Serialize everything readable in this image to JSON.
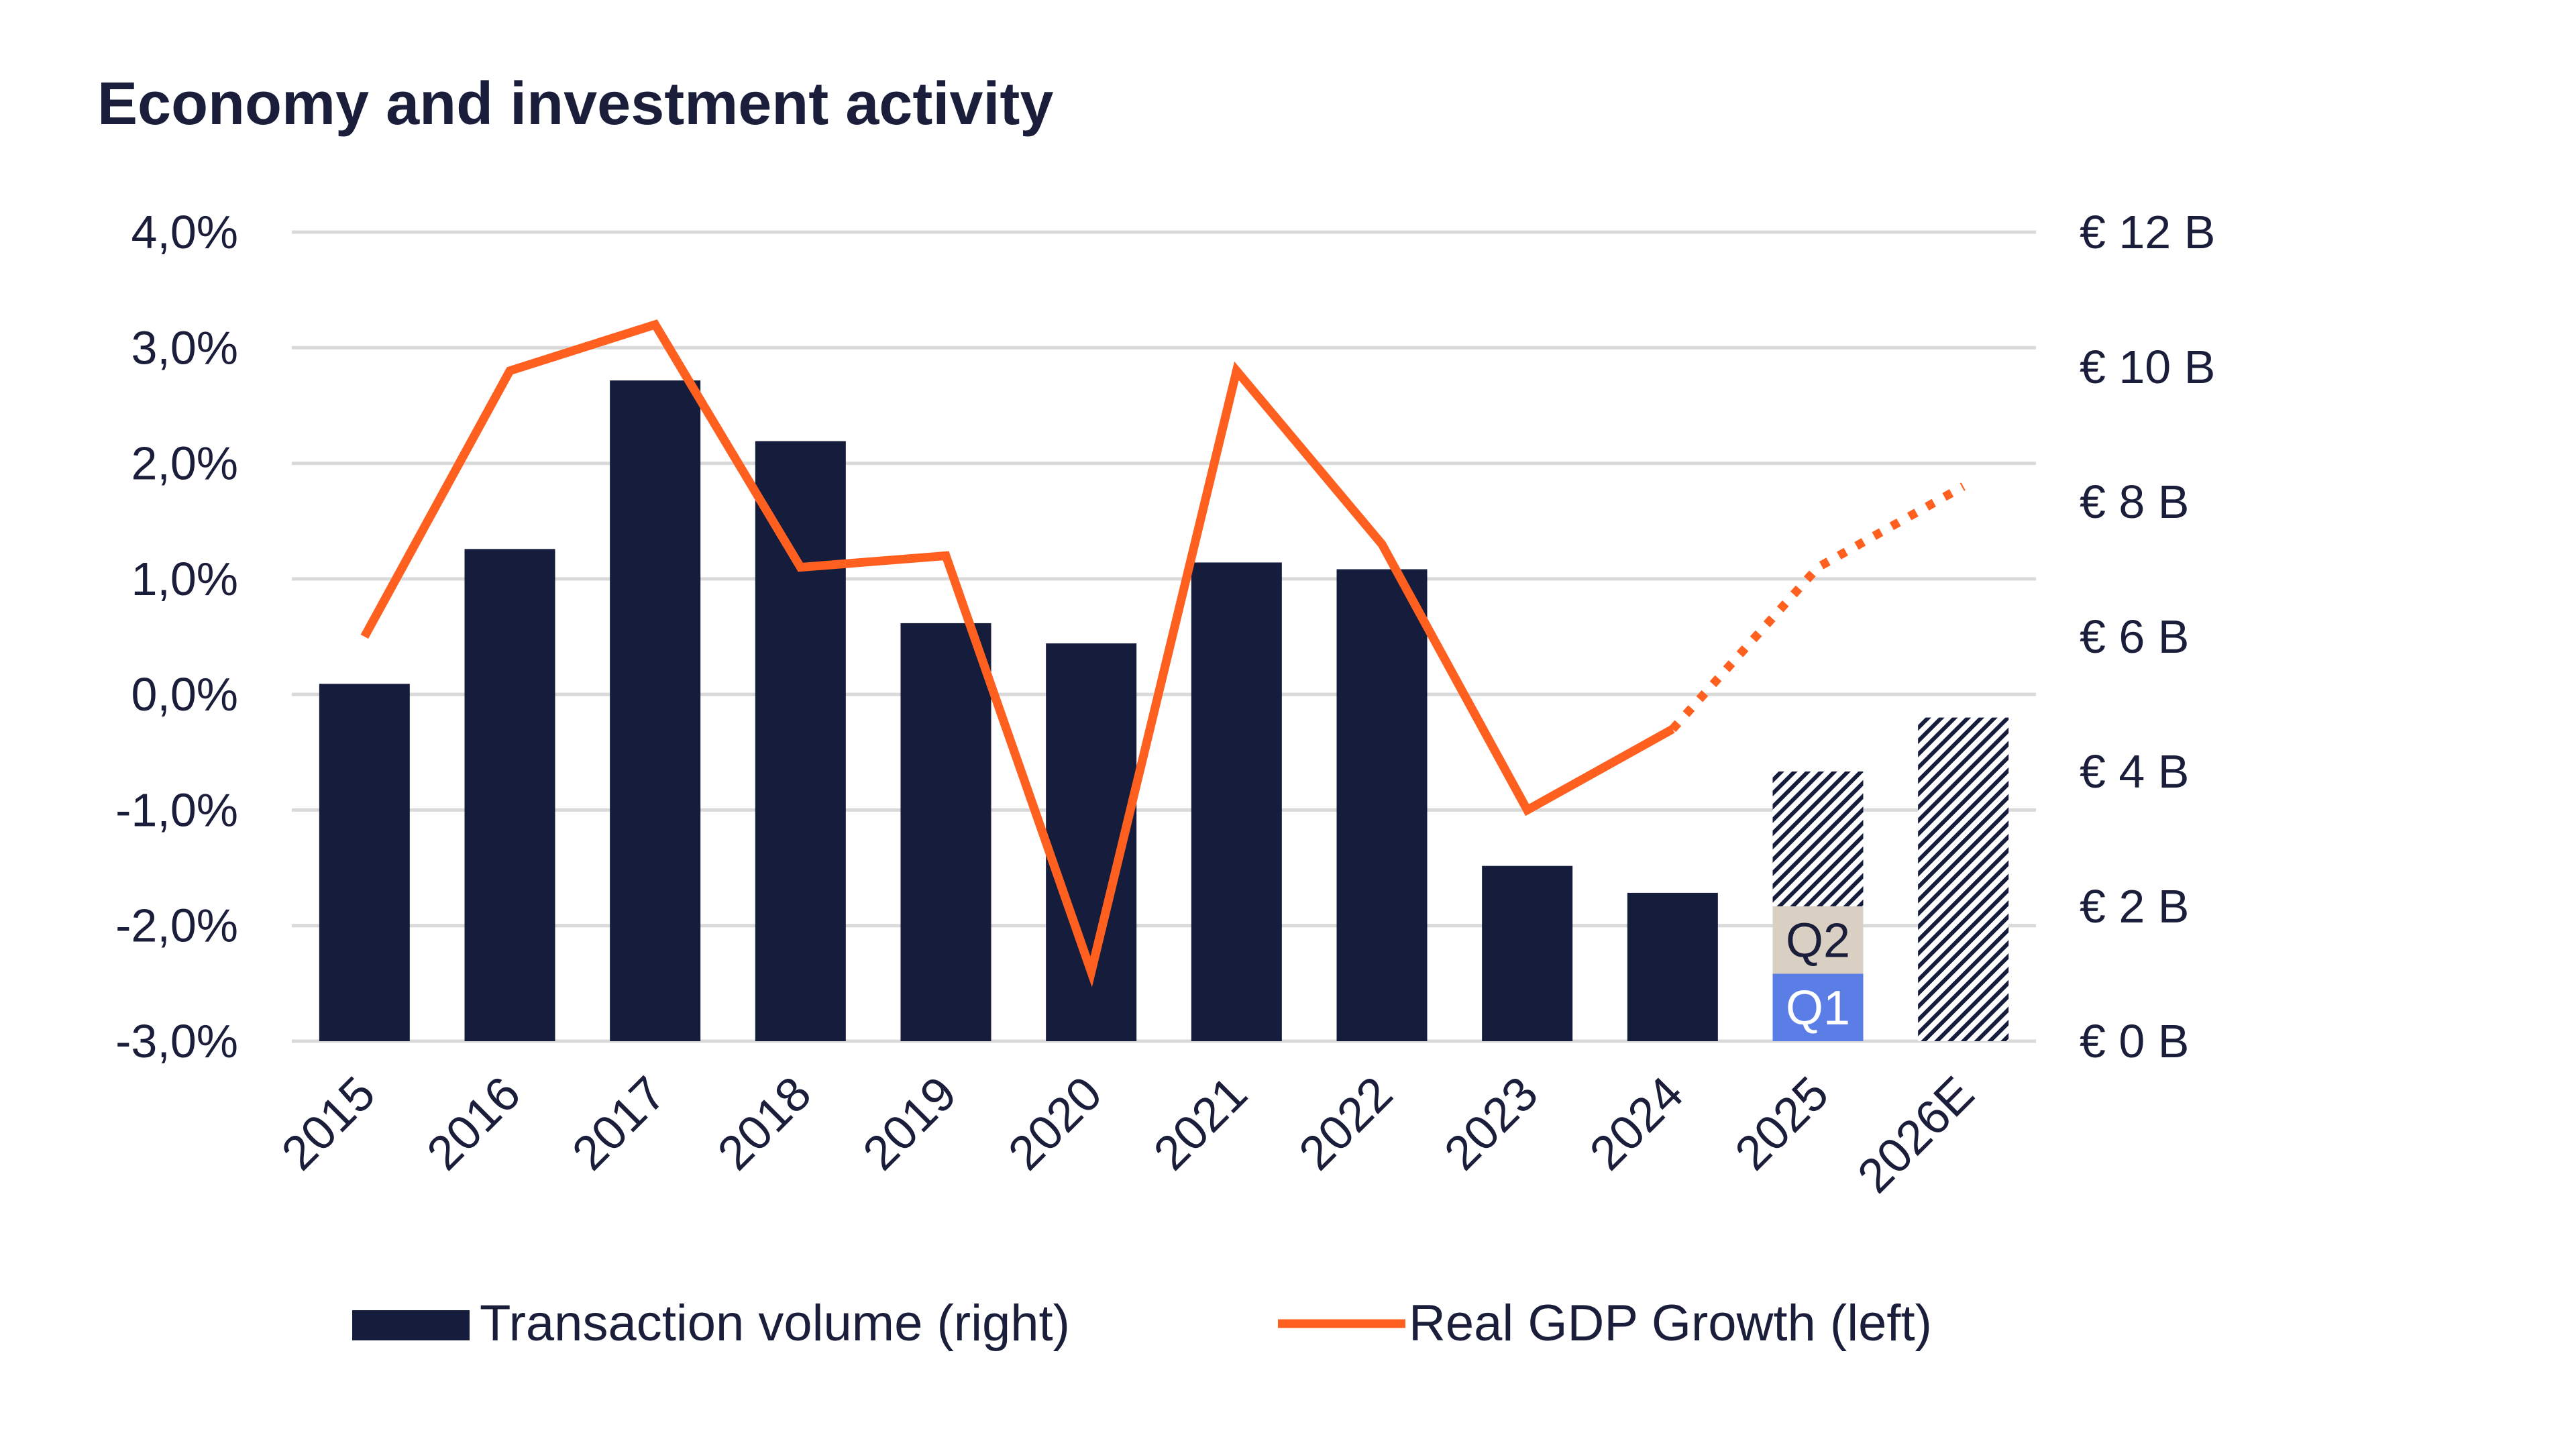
{
  "chart_data": {
    "type": "bar",
    "title": "Economy and investment activity",
    "categories": [
      "2015",
      "2016",
      "2017",
      "2018",
      "2019",
      "2020",
      "2021",
      "2022",
      "2023",
      "2024",
      "2025",
      "2026E"
    ],
    "series": [
      {
        "name": "Transaction volume (right)",
        "axis": "right",
        "type": "bar",
        "values": [
          5.3,
          7.3,
          9.8,
          8.9,
          6.2,
          5.9,
          7.1,
          7.0,
          2.6,
          2.2,
          4.0,
          4.8
        ],
        "breakdown_2025": [
          {
            "label": "Q1",
            "value": 1.0
          },
          {
            "label": "Q2",
            "value": 1.0
          },
          {
            "label": "forecast",
            "value": 2.0
          }
        ],
        "forecast_categories": [
          "2026E"
        ]
      },
      {
        "name": "Real GDP Growth (left)",
        "axis": "left",
        "type": "line",
        "values": [
          0.5,
          2.8,
          3.2,
          1.1,
          1.2,
          -2.4,
          2.8,
          1.3,
          -1.0,
          -0.3,
          1.1,
          1.8
        ],
        "dotted_from_index": 9
      }
    ],
    "y_left": {
      "ticks": [
        "4,0%",
        "3,0%",
        "2,0%",
        "1,0%",
        "0,0%",
        "-1,0%",
        "-2,0%",
        "-3,0%"
      ],
      "ylim": [
        -3,
        4
      ]
    },
    "y_right": {
      "ticks": [
        "€ 12 B",
        "€ 10 B",
        "€ 8 B",
        "€ 6 B",
        "€ 4 B",
        "€ 2 B",
        "€ 0 B"
      ],
      "ylim": [
        0,
        12
      ]
    },
    "legend": [
      {
        "label": "Transaction volume (right)",
        "kind": "bar"
      },
      {
        "label": "Real GDP Growth (left)",
        "kind": "line"
      }
    ],
    "legend_position": "bottom",
    "colors": {
      "bar": "#161c3c",
      "line": "#ff5f1f",
      "q1": "#5b7ee6",
      "q2": "#d9cfc3",
      "grid": "#d9d9d9",
      "text": "#1a1e3a"
    }
  }
}
